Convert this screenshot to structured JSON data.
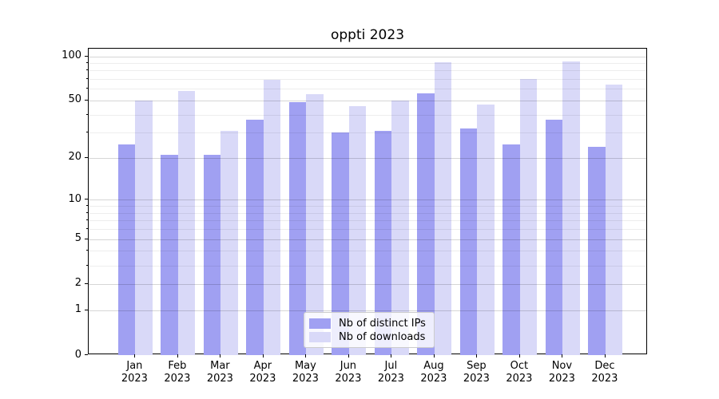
{
  "title": "oppti 2023",
  "chart_data": {
    "type": "bar",
    "title": "oppti 2023",
    "categories": [
      "Jan 2023",
      "Feb 2023",
      "Mar 2023",
      "Apr 2023",
      "May 2023",
      "Jun 2023",
      "Jul 2023",
      "Aug 2023",
      "Sep 2023",
      "Oct 2023",
      "Nov 2023",
      "Dec 2023"
    ],
    "series": [
      {
        "name": "Nb of distinct IPs",
        "color": "#a0a0f2",
        "values": [
          25,
          21,
          21,
          37,
          49,
          30,
          31,
          56,
          32,
          25,
          37,
          24
        ]
      },
      {
        "name": "Nb of downloads",
        "color": "#d9d9f8",
        "values": [
          50,
          58,
          31,
          69,
          55,
          46,
          50,
          91,
          47,
          70,
          92,
          64
        ]
      }
    ],
    "xlabel": "",
    "ylabel": "",
    "yscale": "log1p",
    "ylim": [
      0,
      112.5
    ],
    "yticks": [
      0,
      1,
      2,
      5,
      10,
      20,
      50,
      100
    ],
    "yticks_minor": [
      3,
      4,
      6,
      7,
      8,
      9,
      30,
      40,
      60,
      70,
      80,
      90
    ],
    "grid": "horizontal",
    "legend_position": "lower center"
  }
}
